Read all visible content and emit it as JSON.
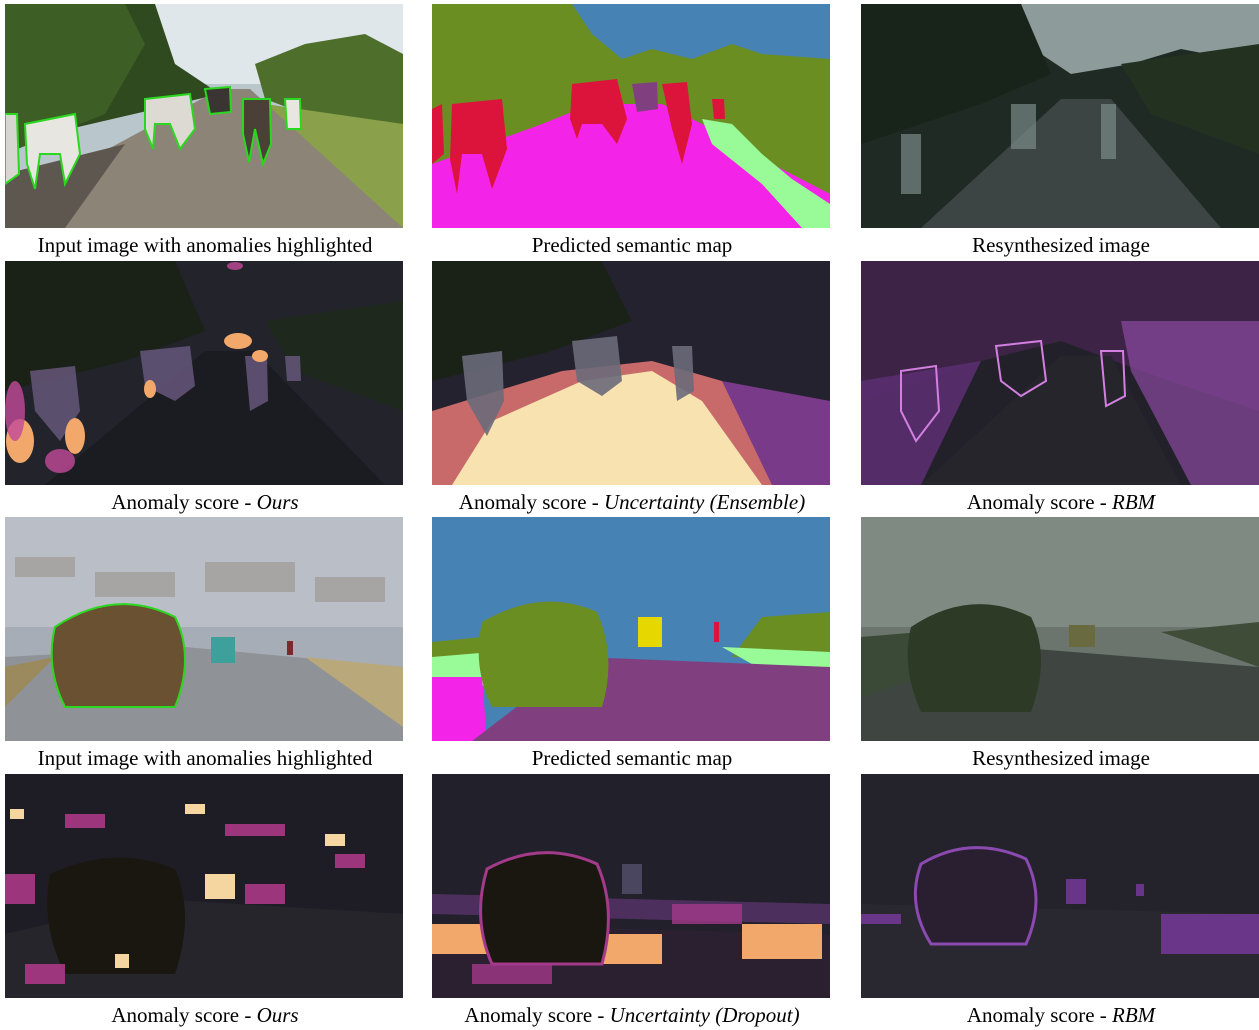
{
  "figure": {
    "rows": [
      {
        "cells": [
          {
            "kind": "input-cows",
            "caption": "Input image with anomalies highlighted",
            "method": ""
          },
          {
            "kind": "semantic-cows",
            "caption": "Predicted semantic map",
            "method": ""
          },
          {
            "kind": "resynth-cows",
            "caption": "Resynthesized image",
            "method": ""
          }
        ]
      },
      {
        "cells": [
          {
            "kind": "score-ours-cows",
            "caption": "Anomaly score - ",
            "method": "Ours"
          },
          {
            "kind": "score-unc-cows",
            "caption": "Anomaly score - ",
            "method": "Uncertainty (Ensemble)"
          },
          {
            "kind": "score-rbm-cows",
            "caption": "Anomaly score - ",
            "method": "RBM"
          }
        ]
      },
      {
        "cells": [
          {
            "kind": "input-hay",
            "caption": "Input image with anomalies highlighted",
            "method": ""
          },
          {
            "kind": "semantic-hay",
            "caption": "Predicted semantic map",
            "method": ""
          },
          {
            "kind": "resynth-hay",
            "caption": "Resynthesized image",
            "method": ""
          }
        ]
      },
      {
        "cells": [
          {
            "kind": "score-ours-hay",
            "caption": "Anomaly score - ",
            "method": "Ours"
          },
          {
            "kind": "score-unc-hay",
            "caption": "Anomaly score - ",
            "method": "Uncertainty (Dropout)"
          },
          {
            "kind": "score-rbm-hay",
            "caption": "Anomaly score - ",
            "method": "RBM"
          }
        ]
      }
    ],
    "colors": {
      "anomaly_outline": "#2bd81f",
      "sky": "#4682b4",
      "vegetation": "#6b8e23",
      "road": "#804080",
      "sidewalk": "#f423e8",
      "terrain": "#98fb98",
      "animal": "#dc143c",
      "vehicle_yellow": "#e6d700",
      "heat_low": "#1e1a2c",
      "heat_mid": "#b33a8c",
      "heat_high": "#fbe6b0"
    }
  }
}
